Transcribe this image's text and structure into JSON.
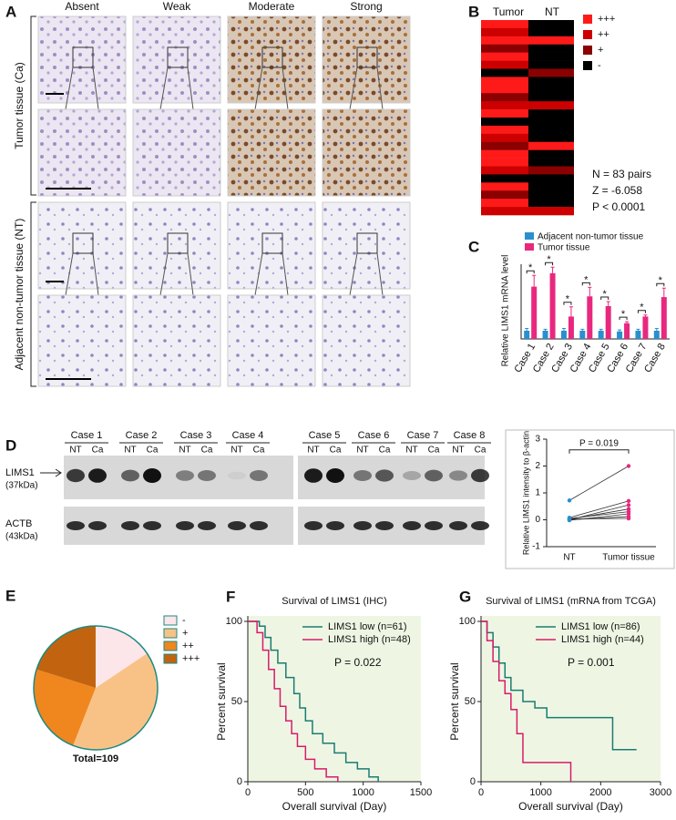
{
  "panel_a": {
    "label": "A",
    "columns": [
      "Absent",
      "Weak",
      "Moderate",
      "Strong"
    ],
    "rows": [
      "Tumor tissue (Ca)",
      "Adjacent non-tumor tissue (NT)"
    ]
  },
  "panel_b": {
    "label": "B",
    "columns": [
      "Tumor",
      "NT"
    ],
    "legend": [
      "+++",
      "++",
      "+",
      "-"
    ],
    "colors": [
      "#ff1a1a",
      "#cc0000",
      "#8b0000",
      "#000000"
    ],
    "stats": [
      "N = 83 pairs",
      "Z = -6.058",
      "P < 0.0001"
    ]
  },
  "panel_d": {
    "label": "D",
    "cases": [
      "Case 1",
      "Case 2",
      "Case 3",
      "Case 4",
      "Case 5",
      "Case 6",
      "Case 7",
      "Case 8"
    ],
    "lanes": [
      "NT",
      "Ca"
    ],
    "proteins": [
      {
        "name": "LIMS1",
        "size": "(37kDa)"
      },
      {
        "name": "ACTB",
        "size": "(43kDa)"
      }
    ]
  },
  "chart_data": [
    {
      "type": "bar",
      "label": "C",
      "ylabel": "Relative LIMS1 mRNA level",
      "categories": [
        "Case 1",
        "Case 2",
        "Case 3",
        "Case 4",
        "Case 5",
        "Case 6",
        "Case 7",
        "Case 8"
      ],
      "series": [
        {
          "name": "Adjacent non-tumor tissue",
          "color": "#2a8fcf",
          "values": [
            1.1,
            1.1,
            1.1,
            1.1,
            1.1,
            1.0,
            1.1,
            1.1
          ],
          "errors": [
            0.3,
            0.2,
            0.3,
            0.2,
            0.2,
            0.2,
            0.2,
            0.3
          ]
        },
        {
          "name": "Tumor tissue",
          "color": "#e8287f",
          "values": [
            7.0,
            8.8,
            3.0,
            5.7,
            4.4,
            2.1,
            3.0,
            5.6
          ],
          "errors": [
            1.5,
            0.8,
            1.3,
            1.2,
            0.6,
            0.2,
            0.2,
            1.2
          ]
        }
      ],
      "annotation": "*",
      "ylim": [
        0,
        10
      ]
    },
    {
      "type": "paired_dot",
      "ylabel": "Relative LIMS1 intensity to β-actin",
      "categories": [
        "NT",
        "Tumor tissue"
      ],
      "colors": [
        "#2a8fcf",
        "#e8287f"
      ],
      "pairs": [
        [
          0.72,
          2.0
        ],
        [
          0.08,
          0.7
        ],
        [
          0.0,
          0.55
        ],
        [
          0.02,
          0.4
        ],
        [
          0.05,
          0.3
        ],
        [
          -0.02,
          0.22
        ],
        [
          0.0,
          0.12
        ],
        [
          0.03,
          0.05
        ]
      ],
      "ylim": [
        -1,
        3
      ],
      "yticks": [
        -1,
        0,
        1,
        2,
        3
      ],
      "annotation": "P = 0.019"
    },
    {
      "type": "pie",
      "label": "E",
      "categories": [
        "-",
        "+",
        "++",
        "+++"
      ],
      "values": [
        17,
        44,
        26,
        22
      ],
      "colors": [
        "#fde6ea",
        "#f8c287",
        "#f0861e",
        "#c2640f"
      ],
      "total_label": "Total=109"
    },
    {
      "type": "survival",
      "label": "F",
      "title": "Survival of LIMS1 (IHC)",
      "xlabel": "Overall survival (Day)",
      "ylabel": "Percent survival",
      "annotation": "P = 0.022",
      "xlim": [
        0,
        1500
      ],
      "xticks": [
        0,
        500,
        1000,
        1500
      ],
      "ylim": [
        0,
        100
      ],
      "yticks": [
        0,
        50,
        100
      ],
      "series": [
        {
          "name": "LIMS1 low (n=61)",
          "color": "#1b7b74",
          "x": [
            0,
            100,
            100,
            150,
            150,
            200,
            200,
            260,
            260,
            330,
            330,
            400,
            400,
            450,
            450,
            500,
            500,
            560,
            560,
            650,
            650,
            750,
            750,
            850,
            850,
            950,
            950,
            1050,
            1050,
            1130,
            1130
          ],
          "values": [
            100,
            100,
            97,
            97,
            90,
            90,
            82,
            82,
            74,
            74,
            65,
            65,
            55,
            55,
            46,
            46,
            38,
            38,
            30,
            30,
            24,
            24,
            18,
            18,
            12,
            12,
            8,
            8,
            3,
            3,
            0
          ]
        },
        {
          "name": "LIMS1 high (n=48)",
          "color": "#d81b6b",
          "x": [
            0,
            80,
            80,
            130,
            130,
            180,
            180,
            230,
            230,
            280,
            280,
            330,
            330,
            380,
            380,
            430,
            430,
            500,
            500,
            580,
            580,
            680,
            680,
            780,
            780
          ],
          "values": [
            100,
            100,
            93,
            93,
            82,
            82,
            70,
            70,
            58,
            58,
            47,
            47,
            38,
            38,
            30,
            30,
            22,
            22,
            14,
            14,
            8,
            8,
            3,
            3,
            0
          ]
        }
      ]
    },
    {
      "type": "survival",
      "label": "G",
      "title": "Survival of LIMS1 (mRNA from TCGA)",
      "xlabel": "Overall survival (Day)",
      "ylabel": "Percent survival",
      "annotation": "P = 0.001",
      "xlim": [
        0,
        3000
      ],
      "xticks": [
        0,
        1000,
        2000,
        3000
      ],
      "ylim": [
        0,
        100
      ],
      "yticks": [
        0,
        50,
        100
      ],
      "series": [
        {
          "name": "LIMS1 low (n=86)",
          "color": "#1b7b74",
          "x": [
            0,
            100,
            100,
            200,
            200,
            300,
            300,
            400,
            400,
            500,
            500,
            700,
            700,
            900,
            900,
            1100,
            1100,
            2200,
            2200,
            2600
          ],
          "values": [
            100,
            100,
            93,
            93,
            84,
            84,
            74,
            74,
            65,
            65,
            57,
            57,
            50,
            50,
            46,
            46,
            40,
            40,
            20,
            20
          ]
        },
        {
          "name": "LIMS1 high (n=44)",
          "color": "#d81b6b",
          "x": [
            0,
            100,
            100,
            200,
            200,
            300,
            300,
            400,
            400,
            500,
            500,
            600,
            600,
            700,
            700,
            1500,
            1500
          ],
          "values": [
            100,
            100,
            88,
            88,
            75,
            75,
            63,
            63,
            55,
            55,
            45,
            45,
            30,
            30,
            12,
            12,
            0
          ]
        }
      ]
    }
  ]
}
